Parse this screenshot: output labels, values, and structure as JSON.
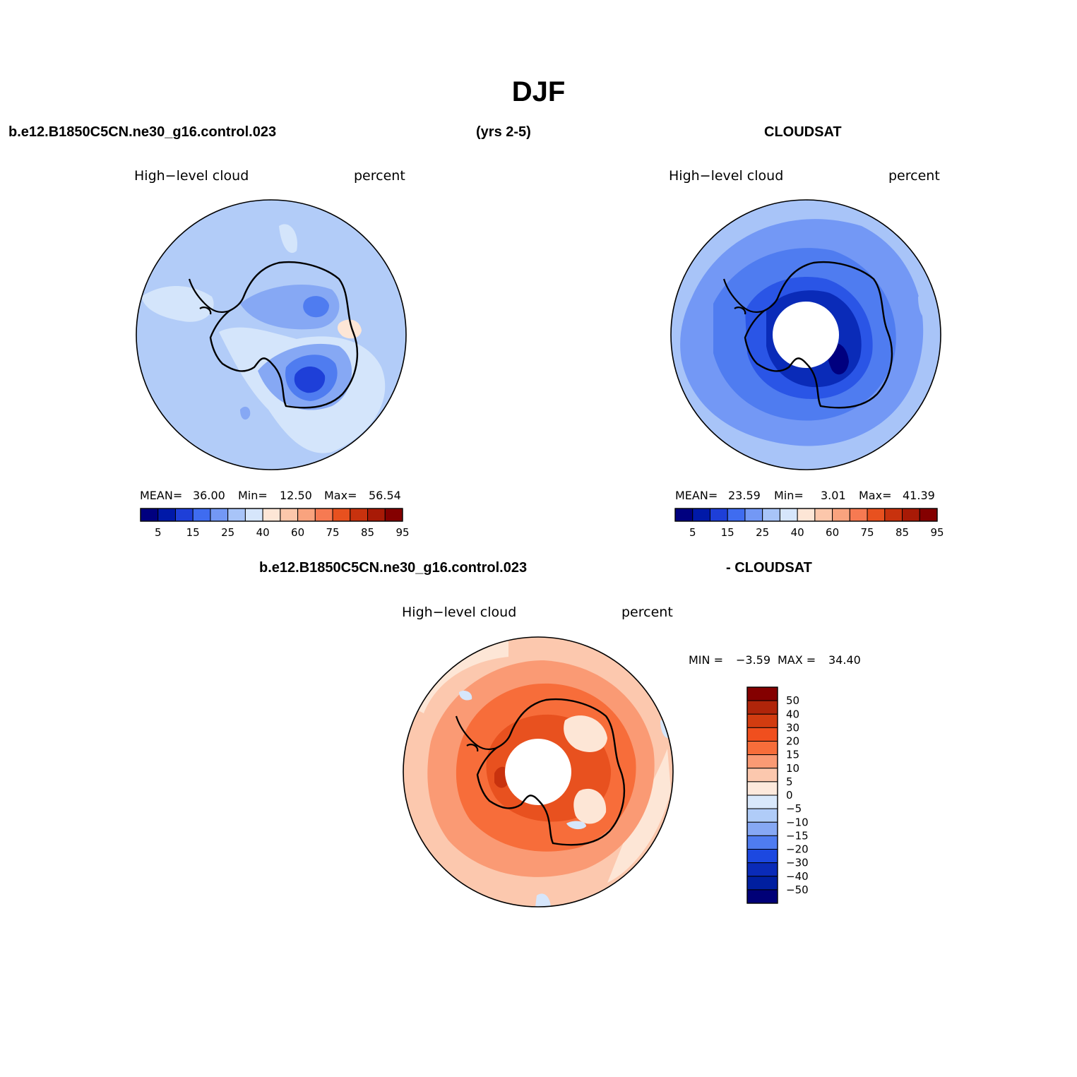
{
  "title": "DJF",
  "header": {
    "case_name": "b.e12.B1850C5CN.ne30_g16.control.023",
    "years": "(yrs 2-5)",
    "obs_name": "CLOUDSAT",
    "diff_case": "b.e12.B1850C5CN.ne30_g16.control.023",
    "diff_obs": "- CLOUDSAT"
  },
  "panels": {
    "model": {
      "variable": "High−level cloud",
      "units": "percent",
      "mean_label": "MEAN=",
      "mean_value": "36.00",
      "min_label": "Min=",
      "min_value": "12.50",
      "max_label": "Max=",
      "max_value": "56.54"
    },
    "obs": {
      "variable": "High−level cloud",
      "units": "percent",
      "mean_label": "MEAN=",
      "mean_value": "23.59",
      "min_label": "Min=",
      "min_value": "3.01",
      "max_label": "Max=",
      "max_value": "41.39"
    },
    "diff": {
      "variable": "High−level cloud",
      "units": "percent",
      "min_label": "MIN =",
      "min_value": "−3.59",
      "max_label": "MAX =",
      "max_value": "34.40"
    }
  },
  "colorbar_main": {
    "tick_labels": [
      "5",
      "15",
      "25",
      "40",
      "60",
      "75",
      "85",
      "95"
    ],
    "colors": [
      "#00007f",
      "#0019a8",
      "#1e3fd8",
      "#3f6cf0",
      "#7398f5",
      "#a8c4f8",
      "#d6e6fb",
      "#fde6d6",
      "#fcc7ab",
      "#f9a37e",
      "#f67a52",
      "#e8511f",
      "#c8320e",
      "#a81a06",
      "#840000"
    ]
  },
  "colorbar_diff": {
    "tick_labels": [
      "50",
      "40",
      "30",
      "20",
      "15",
      "10",
      "5",
      "0",
      "−5",
      "−10",
      "−15",
      "−20",
      "−30",
      "−40",
      "−50"
    ],
    "colors": [
      "#840000",
      "#b0250a",
      "#d23c10",
      "#f04f1e",
      "#f76d3a",
      "#fa9a74",
      "#fcc8ae",
      "#fde9dc",
      "#d9e8fb",
      "#b0ccf8",
      "#86a8f4",
      "#4f7cf0",
      "#1c48e0",
      "#0a2bb8",
      "#001fa0",
      "#000077"
    ]
  },
  "map_colors": {
    "model_bg": "#b2ccf8",
    "model_light": "#d4e5fb",
    "model_mid": "#86a8f4",
    "model_dark": "#4f7cf0",
    "model_darker": "#1e3fd8",
    "model_peach": "#fde6d6",
    "obs_bg": "#a8c4f8",
    "obs_mid": "#7398f5",
    "obs_dark": "#4f7cf0",
    "obs_darker": "#2a55e6",
    "obs_deep": "#0a2bb8",
    "obs_deepest": "#00007f",
    "diff_bg": "#fcc8ae",
    "diff_light": "#fde6d6",
    "diff_mid": "#fa9a74",
    "diff_dark": "#f76d3a",
    "diff_darker": "#e8511f",
    "diff_deep": "#c8320e",
    "diff_blue": "#d6e6fb"
  }
}
